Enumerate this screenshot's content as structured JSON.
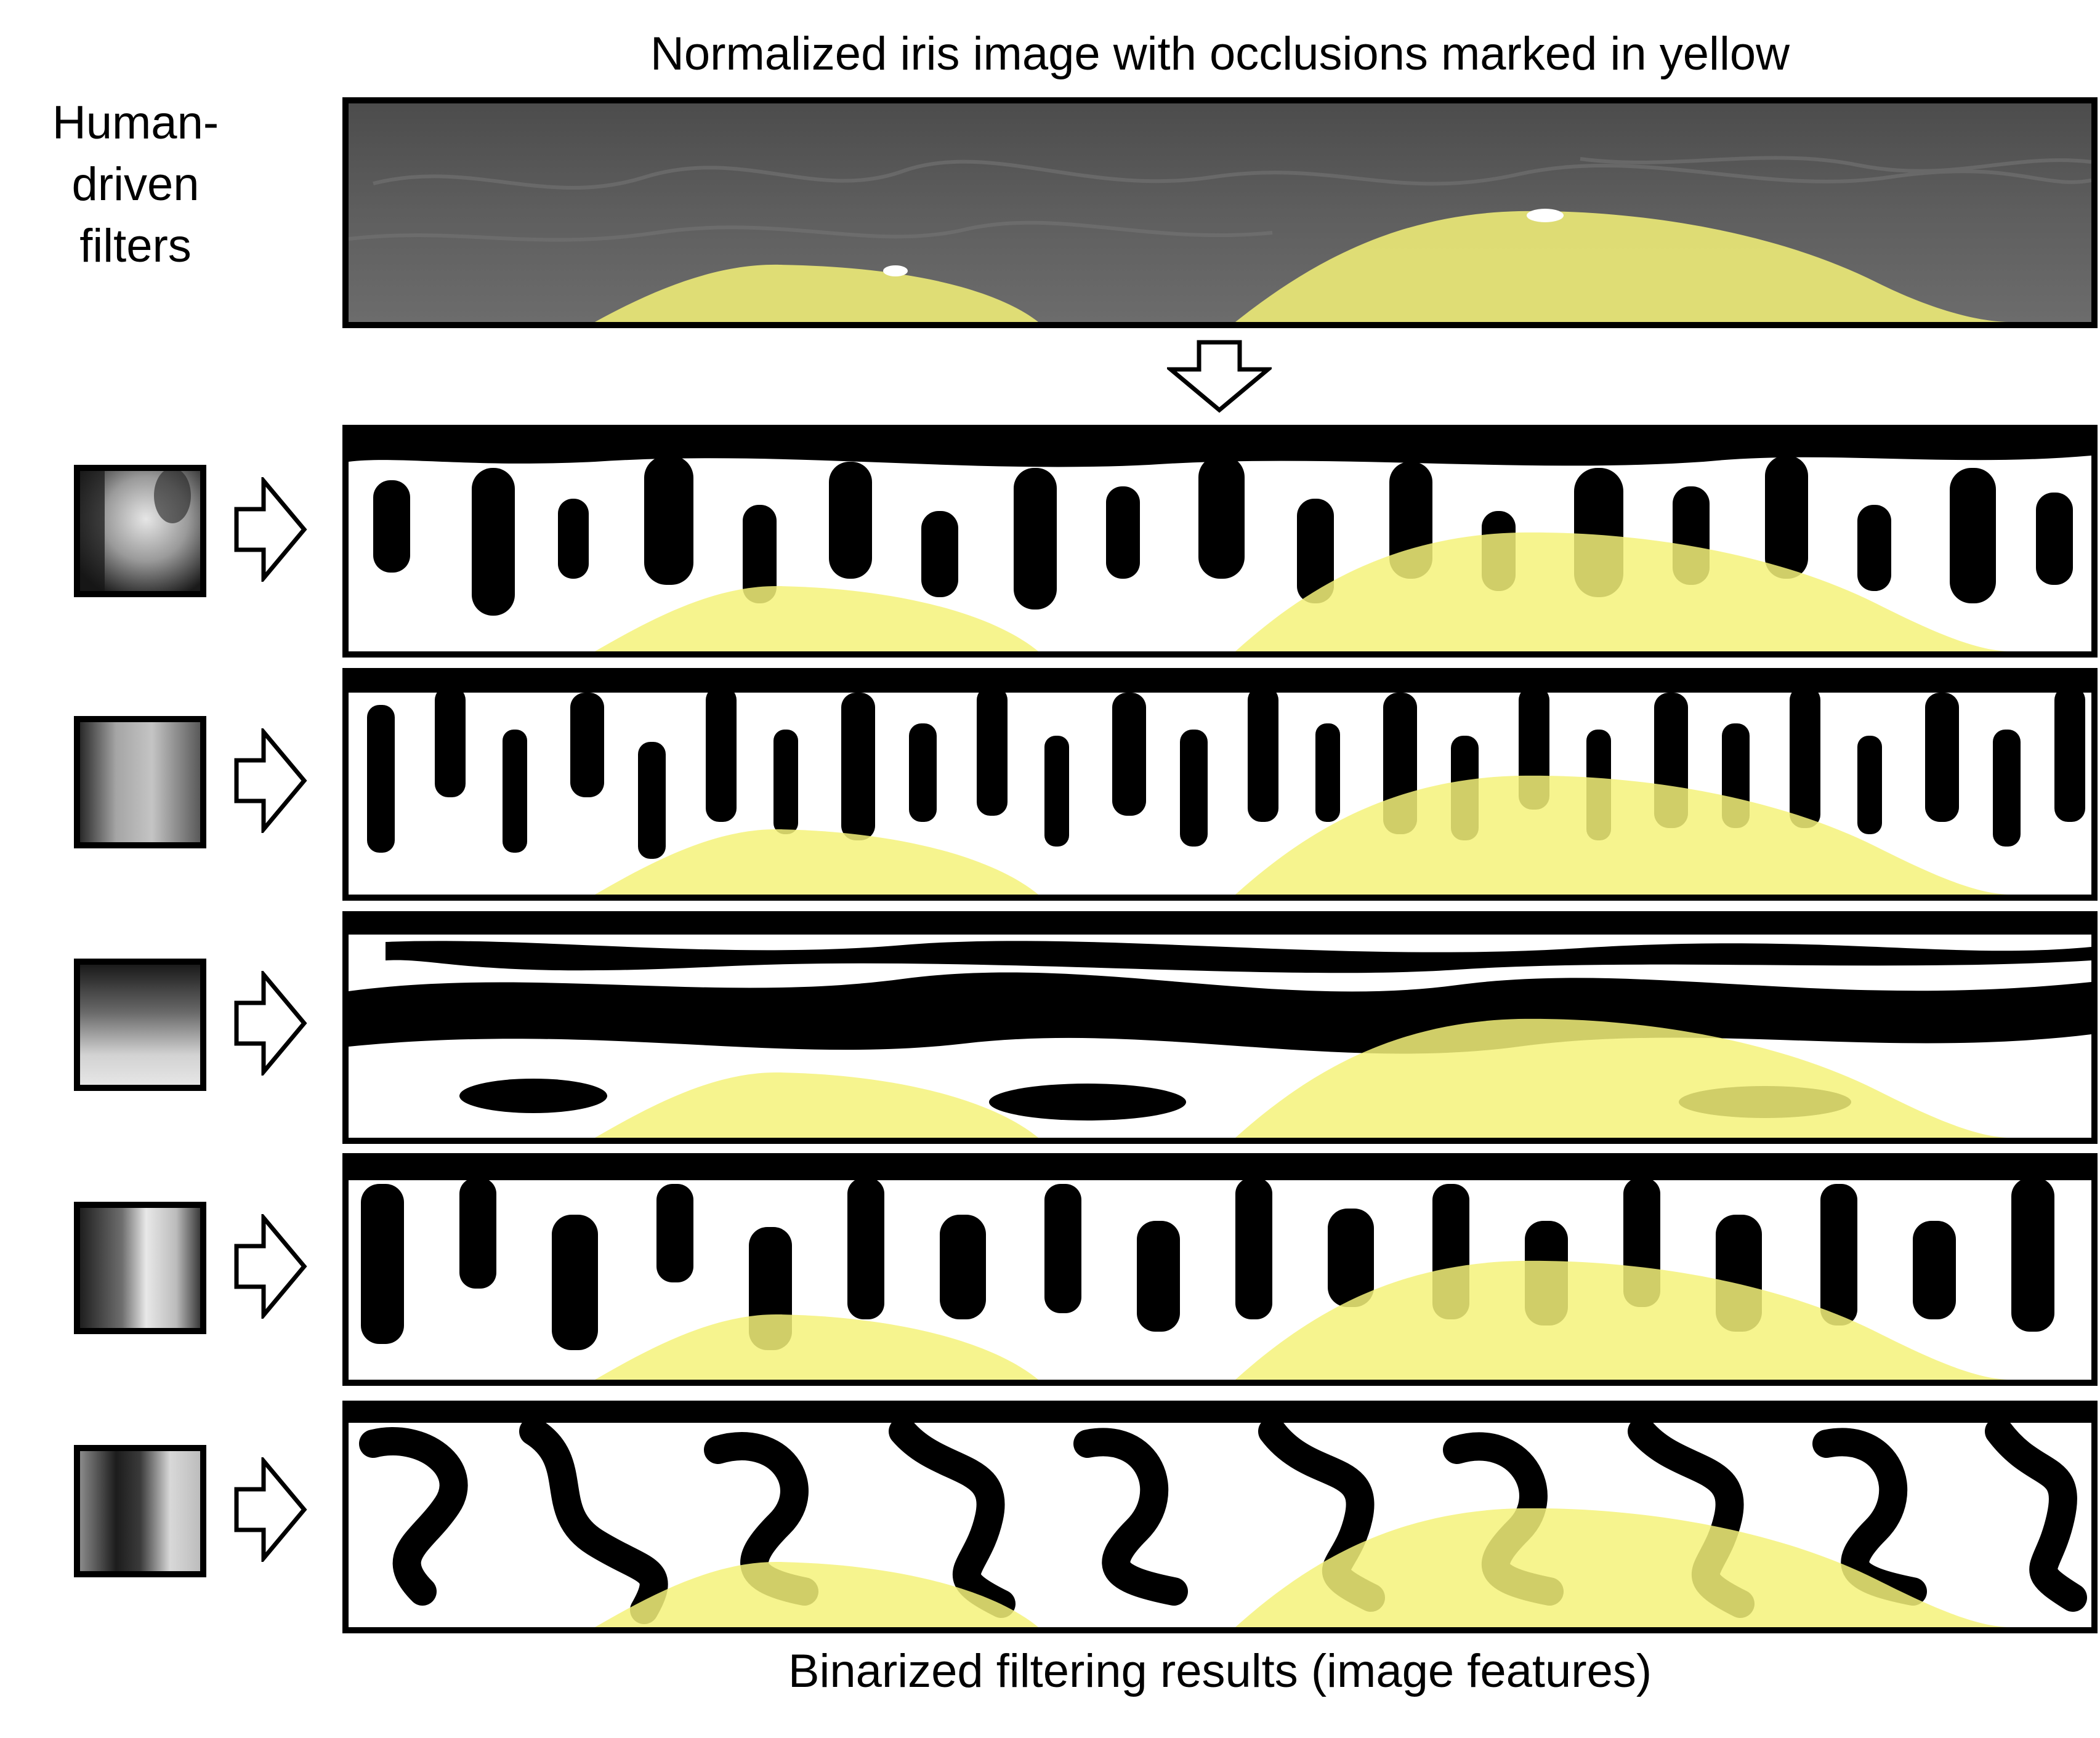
{
  "header": {
    "top_title": "Normalized iris image with occlusions marked in yellow",
    "side_title_lines": [
      "Human-",
      "driven",
      "filters"
    ]
  },
  "footer": {
    "caption": "Binarized filtering results (image features)"
  },
  "colors": {
    "occlusion_yellow": "#f4f27a",
    "occlusion_dark_yellow": "#9a9410",
    "iris_gray": "#5f5f5f",
    "border": "#000000"
  },
  "icons": {
    "down_arrow": "down-arrow-icon",
    "right_arrow": "right-arrow-icon"
  },
  "filters": [
    {
      "name": "filter-1",
      "pattern": "blotchy"
    },
    {
      "name": "filter-2",
      "pattern": "vertical-soft"
    },
    {
      "name": "filter-3",
      "pattern": "horizontal"
    },
    {
      "name": "filter-4",
      "pattern": "vertical-bright"
    },
    {
      "name": "filter-5",
      "pattern": "vertical-dark"
    }
  ]
}
